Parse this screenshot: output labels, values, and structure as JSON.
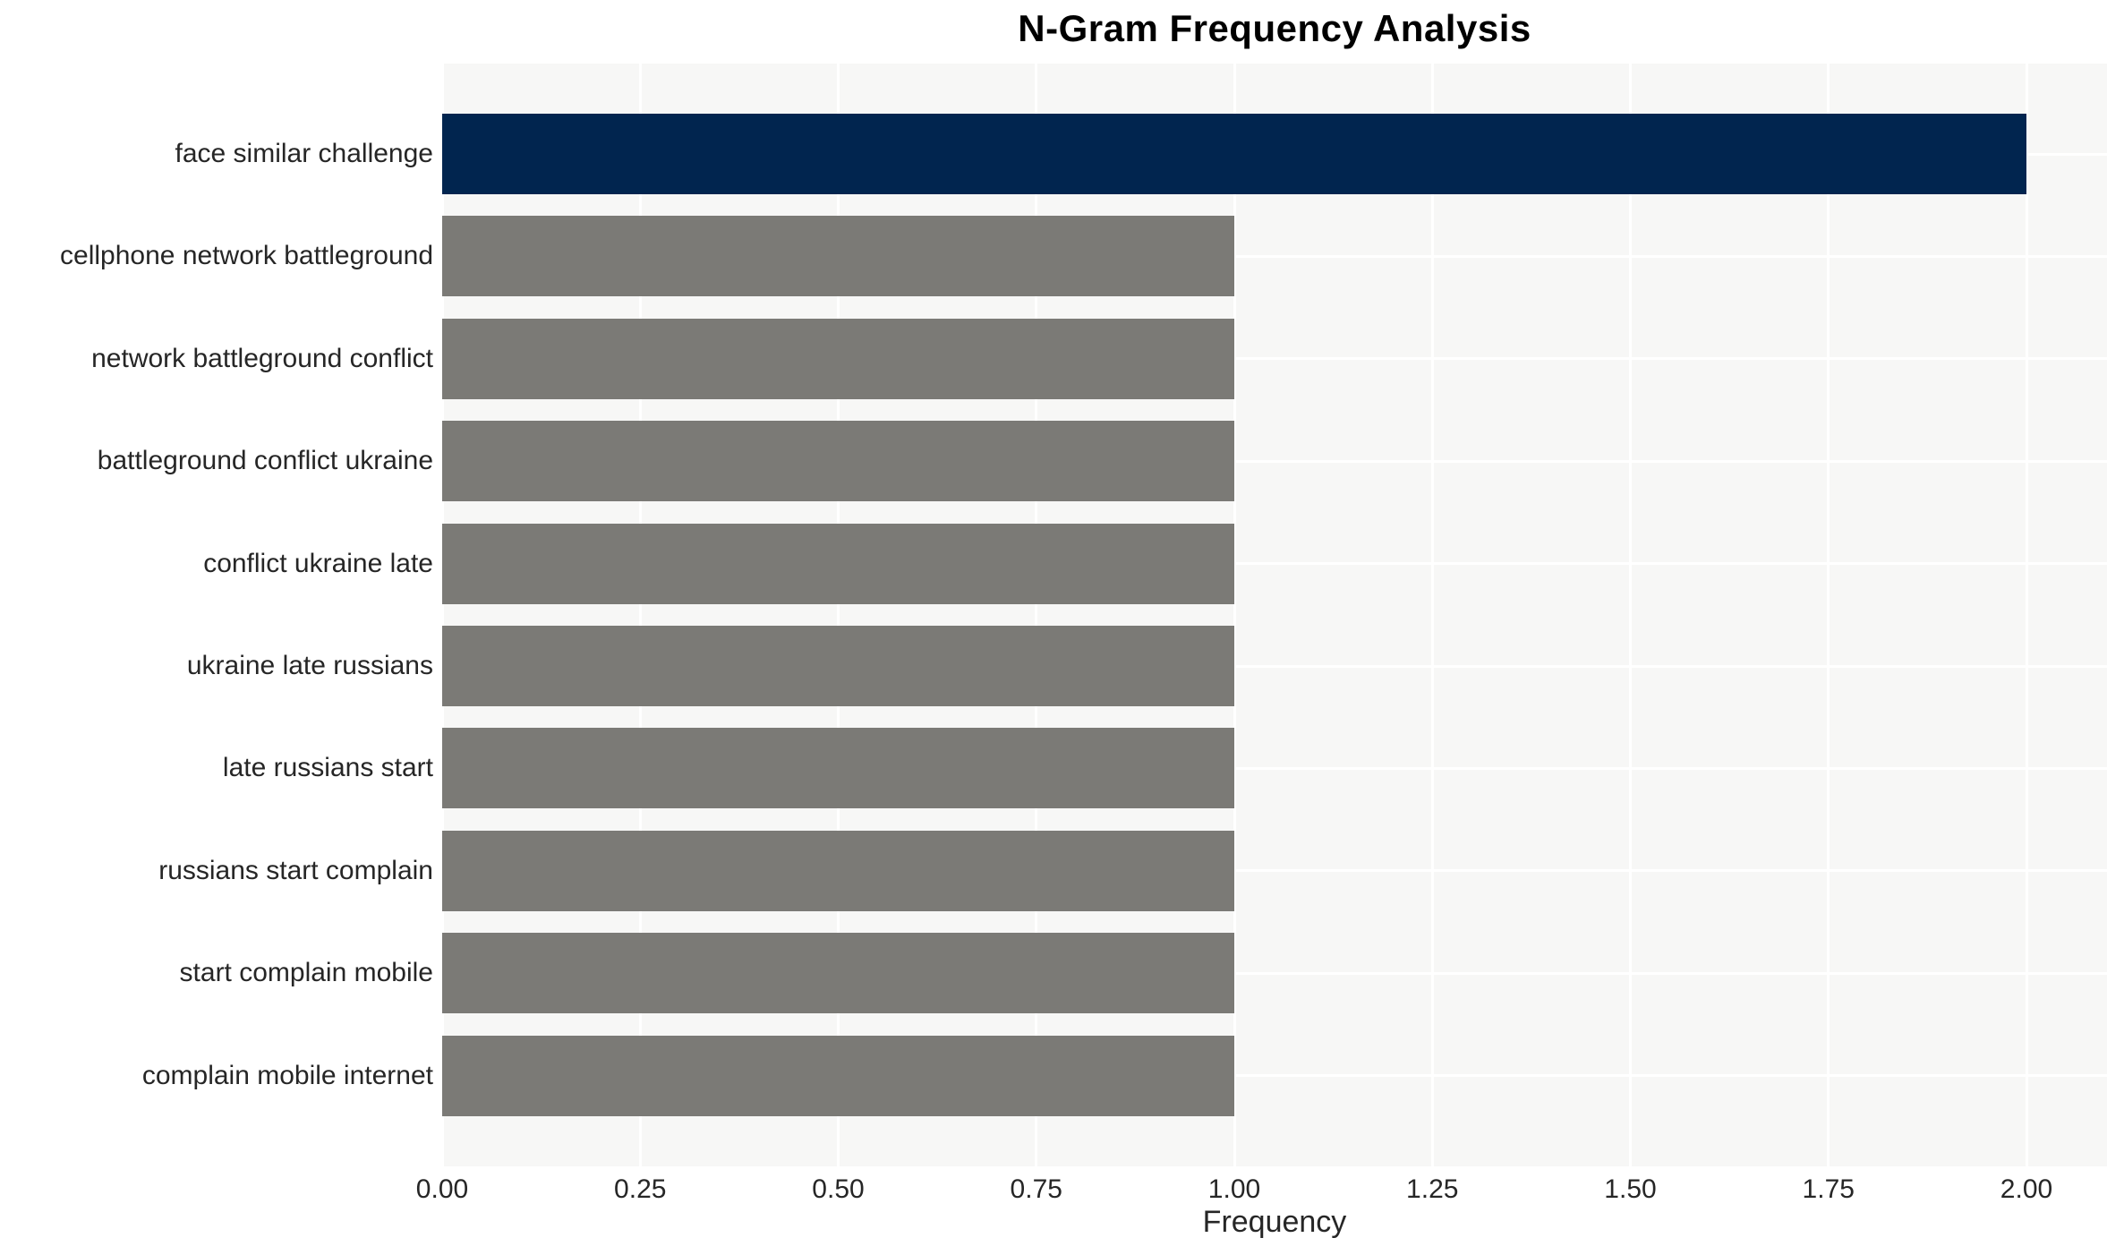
{
  "chart_data": {
    "type": "bar",
    "orientation": "horizontal",
    "title": "N-Gram Frequency Analysis",
    "xlabel": "Frequency",
    "ylabel": "",
    "categories": [
      "face similar challenge",
      "cellphone network battleground",
      "network battleground conflict",
      "battleground conflict ukraine",
      "conflict ukraine late",
      "ukraine late russians",
      "late russians start",
      "russians start complain",
      "start complain mobile",
      "complain mobile internet"
    ],
    "values": [
      2,
      1,
      1,
      1,
      1,
      1,
      1,
      1,
      1,
      1
    ],
    "bar_colors": [
      "#01254f",
      "#7b7a76",
      "#7b7a76",
      "#7b7a76",
      "#7b7a76",
      "#7b7a76",
      "#7b7a76",
      "#7b7a76",
      "#7b7a76",
      "#7b7a76"
    ],
    "xticks": [
      0,
      0.25,
      0.5,
      0.75,
      1,
      1.25,
      1.5,
      1.75,
      2
    ],
    "xtick_labels": [
      "0.00",
      "0.25",
      "0.50",
      "0.75",
      "1.00",
      "1.25",
      "1.50",
      "1.75",
      "2.00"
    ],
    "xlim": [
      0,
      2.1
    ],
    "grid": true,
    "legend": false,
    "colors": {
      "highlight_bar": "#01254f",
      "default_bar": "#7b7a76",
      "plot_background": "#f7f7f6",
      "gridline": "#ffffff",
      "text": "#262626",
      "title": "#000000"
    }
  }
}
